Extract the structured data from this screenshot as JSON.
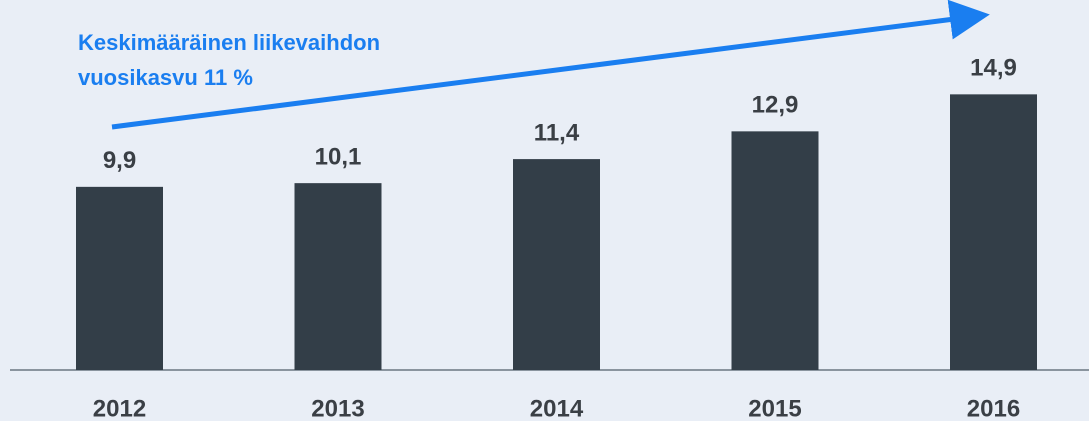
{
  "chart_data": {
    "type": "bar",
    "annotation": [
      "Keskimääräinen liikevaihdon",
      "vuosikasvu 11 %"
    ],
    "categories": [
      "2012",
      "2013",
      "2014",
      "2015",
      "2016"
    ],
    "values": [
      9.9,
      10.1,
      11.4,
      12.9,
      14.9
    ],
    "value_labels": [
      "9,9",
      "10,1",
      "11,4",
      "12,9",
      "14,9"
    ],
    "color": "#333e48",
    "ylim": [
      0,
      20
    ]
  }
}
